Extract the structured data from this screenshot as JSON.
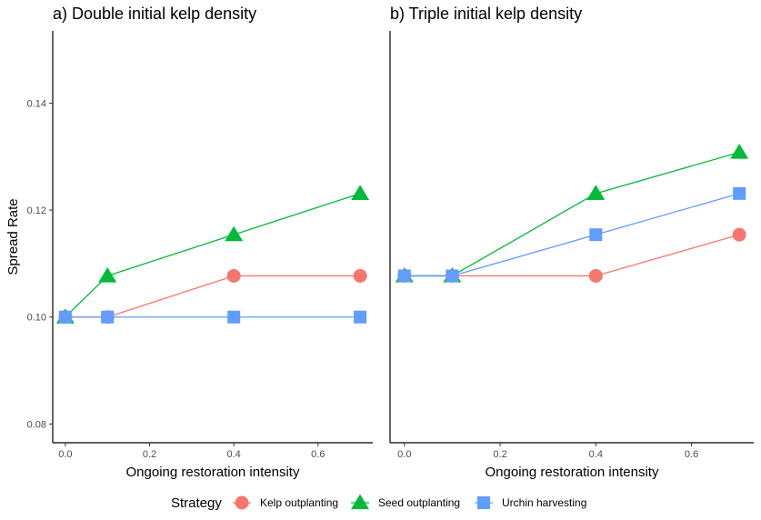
{
  "ylabel": "Spread Rate",
  "legend": {
    "title": "Strategy",
    "placement": "bottom",
    "entries": [
      {
        "label": "Kelp outplanting",
        "color": "#F8766D",
        "shape": "circle"
      },
      {
        "label": "Seed outplanting",
        "color": "#00BA38",
        "shape": "triangle"
      },
      {
        "label": "Urchin harvesting",
        "color": "#619CFF",
        "shape": "square"
      }
    ]
  },
  "chart_data": [
    {
      "type": "line",
      "title": "a) Double initial kelp density",
      "xlabel": "Ongoing restoration intensity",
      "ylabel": "Spread Rate",
      "xlim": [
        -0.03,
        0.73
      ],
      "ylim": [
        0.0765,
        0.1535
      ],
      "xticks": [
        0.0,
        0.2,
        0.4,
        0.6
      ],
      "xtick_labels": [
        "0.0",
        "0.2",
        "0.4",
        "0.6"
      ],
      "yticks": [
        0.08,
        0.1,
        0.12,
        0.14
      ],
      "ytick_labels": [
        "0.08",
        "0.10",
        "0.12",
        "0.14"
      ],
      "grid": false,
      "x": [
        0.0,
        0.1,
        0.4,
        0.7
      ],
      "series": [
        {
          "name": "Kelp outplanting",
          "color": "#F8766D",
          "shape": "circle",
          "values": [
            0.1,
            0.1,
            0.1077,
            0.1077
          ]
        },
        {
          "name": "Seed outplanting",
          "color": "#00BA38",
          "shape": "triangle",
          "values": [
            0.1,
            0.1077,
            0.1154,
            0.1231
          ]
        },
        {
          "name": "Urchin harvesting",
          "color": "#619CFF",
          "shape": "square",
          "values": [
            0.1,
            0.1,
            0.1,
            0.1
          ]
        }
      ]
    },
    {
      "type": "line",
      "title": "b) Triple initial kelp density",
      "xlabel": "Ongoing restoration intensity",
      "ylabel": "",
      "xlim": [
        -0.03,
        0.73
      ],
      "ylim": [
        0.0765,
        0.1535
      ],
      "xticks": [
        0.0,
        0.2,
        0.4,
        0.6
      ],
      "xtick_labels": [
        "0.0",
        "0.2",
        "0.4",
        "0.6"
      ],
      "yticks": [],
      "ytick_labels": [],
      "grid": false,
      "x": [
        0.0,
        0.1,
        0.4,
        0.7
      ],
      "series": [
        {
          "name": "Kelp outplanting",
          "color": "#F8766D",
          "shape": "circle",
          "values": [
            0.1077,
            0.1077,
            0.1077,
            0.1154
          ]
        },
        {
          "name": "Seed outplanting",
          "color": "#00BA38",
          "shape": "triangle",
          "values": [
            0.1077,
            0.1077,
            0.1231,
            0.1308
          ]
        },
        {
          "name": "Urchin harvesting",
          "color": "#619CFF",
          "shape": "square",
          "values": [
            0.1077,
            0.1077,
            0.1154,
            0.1231
          ]
        }
      ]
    }
  ]
}
